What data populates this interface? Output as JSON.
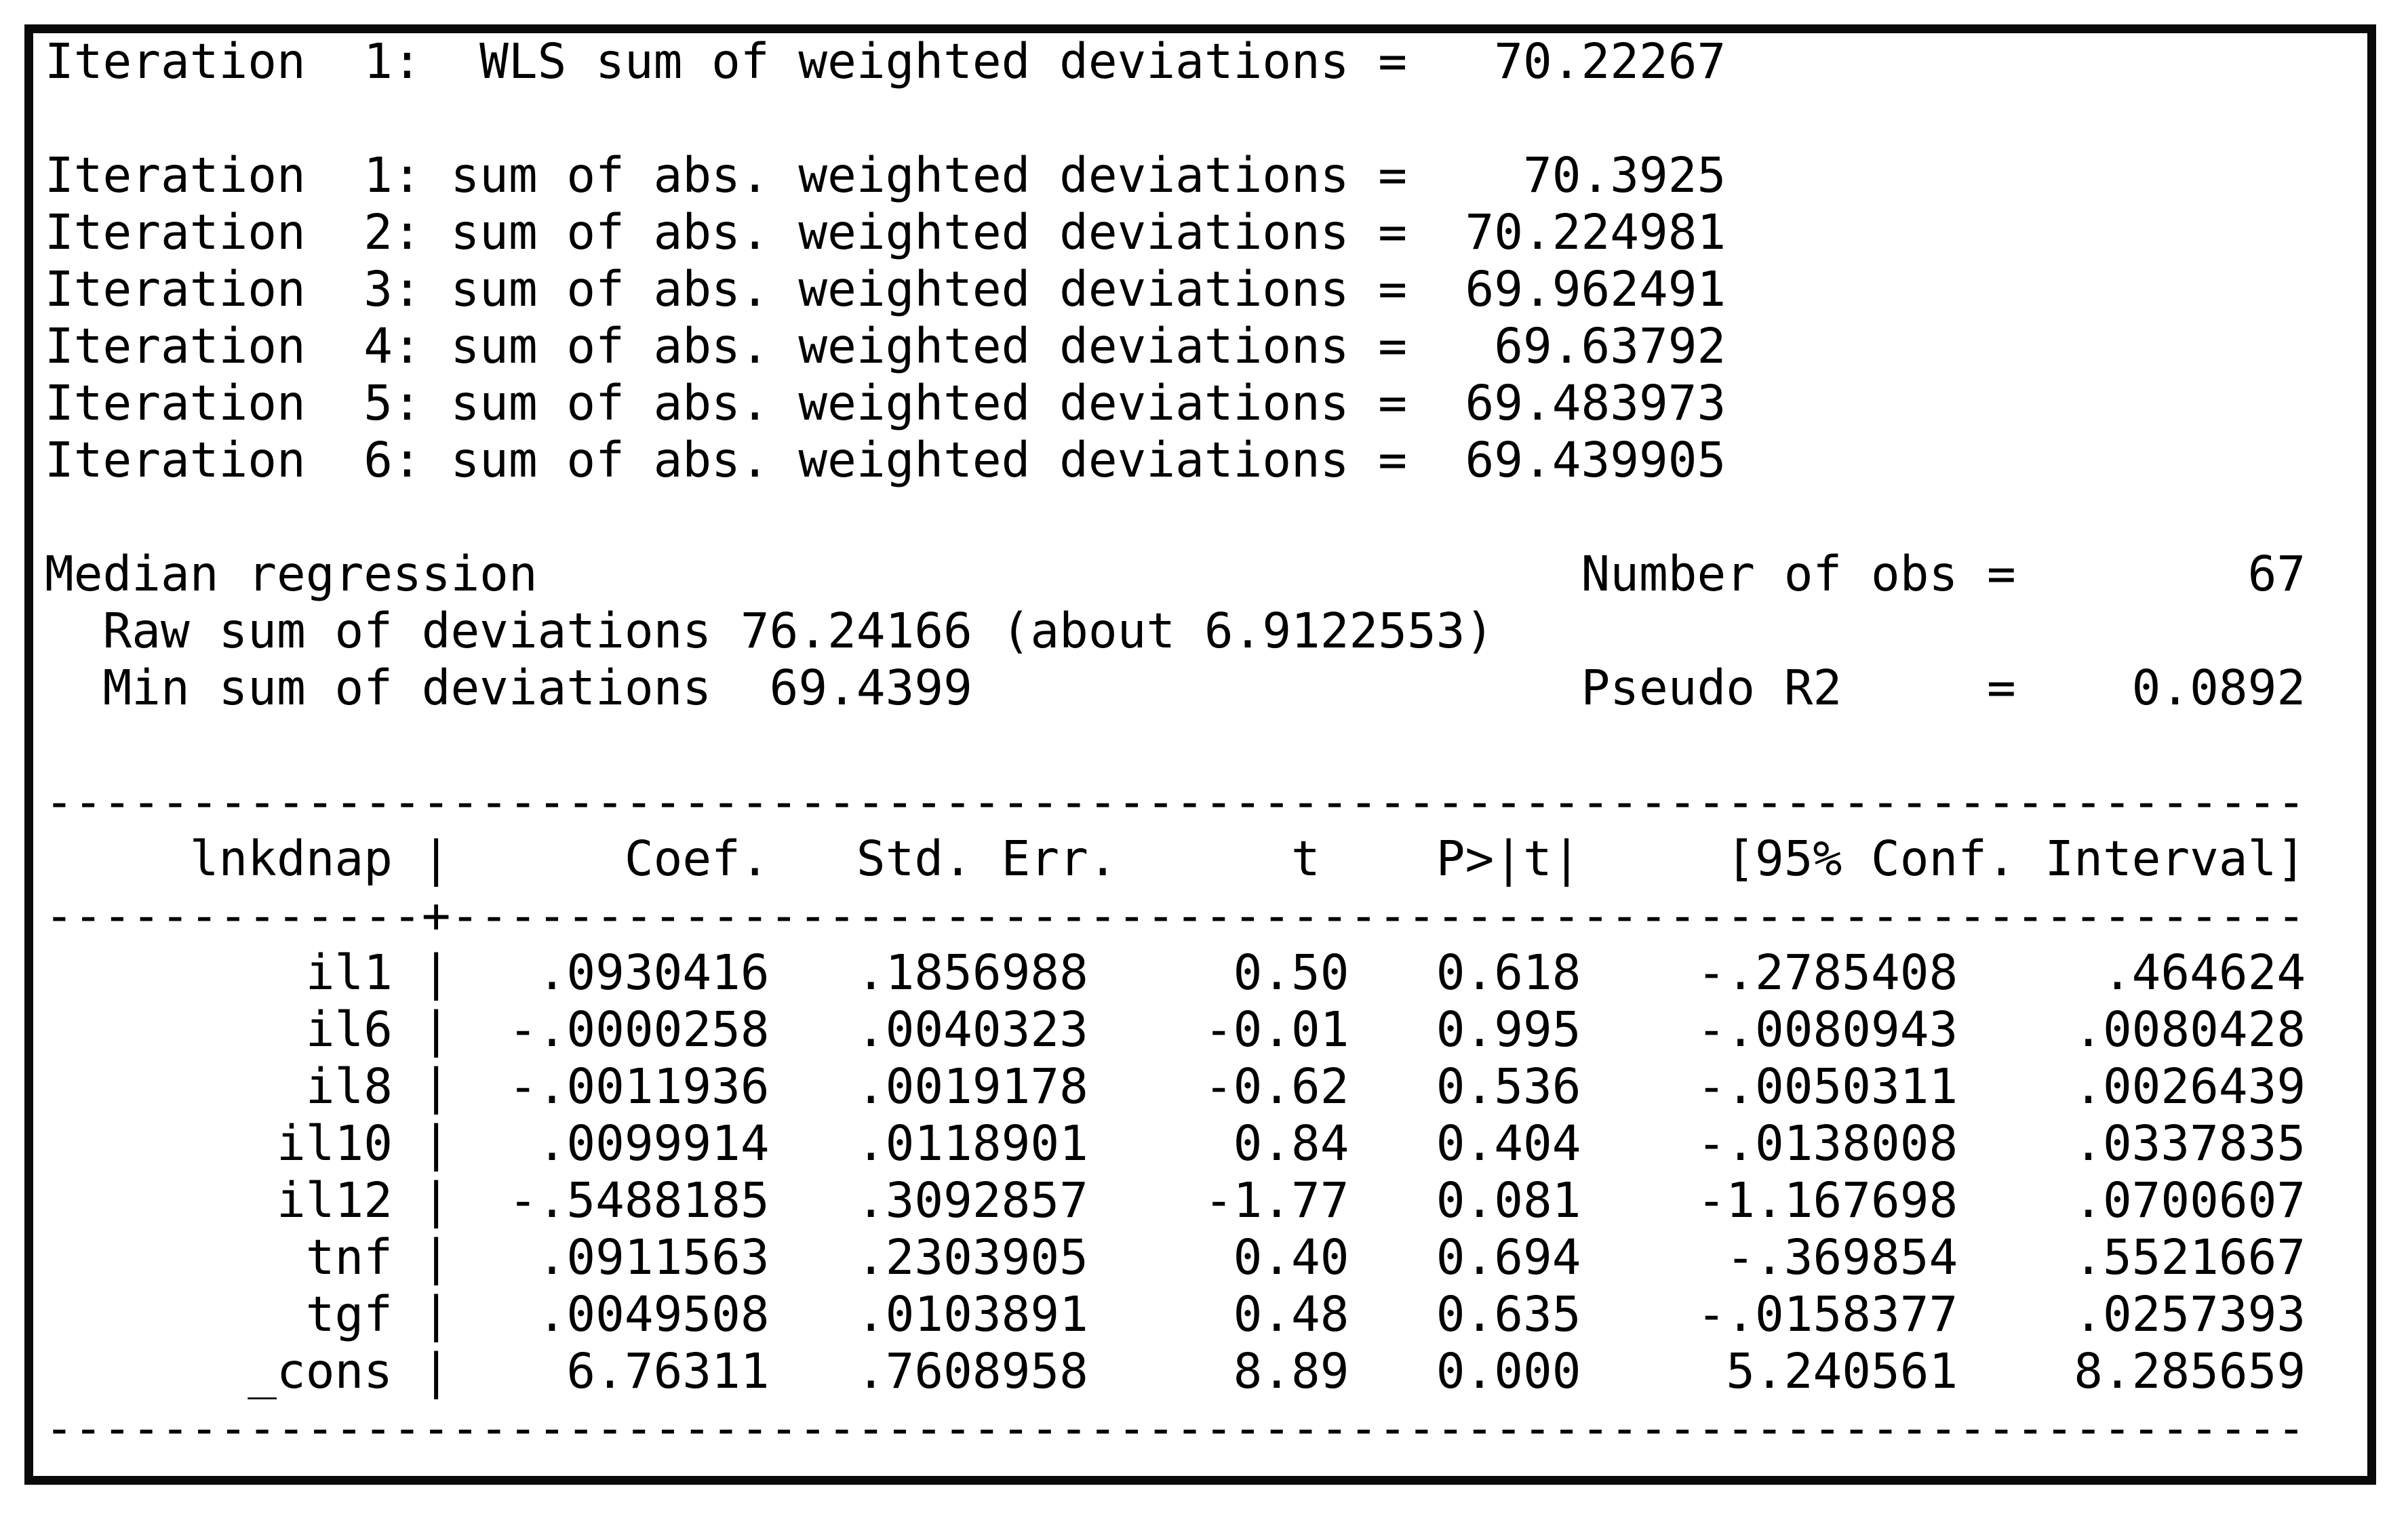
{
  "window": {
    "background_color": "#ffffff",
    "border_color": "#0a0a0a",
    "text_color": "#000000"
  },
  "iteration_log": {
    "wls_label": "WLS sum of weighted deviations",
    "wls_iterations": [
      {
        "iteration": 1,
        "value": "70.22267"
      }
    ],
    "abs_label": "sum of abs. weighted deviations",
    "abs_iterations": [
      {
        "iteration": 1,
        "value": "70.3925"
      },
      {
        "iteration": 2,
        "value": "70.224981"
      },
      {
        "iteration": 3,
        "value": "69.962491"
      },
      {
        "iteration": 4,
        "value": "69.63792"
      },
      {
        "iteration": 5,
        "value": "69.483973"
      },
      {
        "iteration": 6,
        "value": "69.439905"
      }
    ]
  },
  "summary": {
    "title": "Median regression",
    "raw_sum_label": "Raw sum of deviations",
    "raw_sum_value": "76.24166",
    "raw_sum_about": "6.9122553",
    "min_sum_label": "Min sum of deviations",
    "min_sum_value": "69.4399",
    "number_of_obs_label": "Number of obs",
    "number_of_obs": "67",
    "pseudo_r2_label": "Pseudo R2",
    "pseudo_r2": "0.0892"
  },
  "coefficient_table": {
    "depvar": "lnkdnap",
    "columns": [
      "Coef.",
      "Std. Err.",
      "t",
      "P>|t|",
      "[95% Conf. Interval]"
    ],
    "rows": [
      {
        "var": "il1",
        "coef": ".0930416",
        "std_err": ".1856988",
        "t": "0.50",
        "p": "0.618",
        "ci_low": "-.2785408",
        "ci_high": ".464624"
      },
      {
        "var": "il6",
        "coef": "-.0000258",
        "std_err": ".0040323",
        "t": "-0.01",
        "p": "0.995",
        "ci_low": "-.0080943",
        "ci_high": ".0080428"
      },
      {
        "var": "il8",
        "coef": "-.0011936",
        "std_err": ".0019178",
        "t": "-0.62",
        "p": "0.536",
        "ci_low": "-.0050311",
        "ci_high": ".0026439"
      },
      {
        "var": "il10",
        "coef": ".0099914",
        "std_err": ".0118901",
        "t": "0.84",
        "p": "0.404",
        "ci_low": "-.0138008",
        "ci_high": ".0337835"
      },
      {
        "var": "il12",
        "coef": "-.5488185",
        "std_err": ".3092857",
        "t": "-1.77",
        "p": "0.081",
        "ci_low": "-1.167698",
        "ci_high": ".0700607"
      },
      {
        "var": "tnf",
        "coef": ".0911563",
        "std_err": ".2303905",
        "t": "0.40",
        "p": "0.694",
        "ci_low": "-.369854",
        "ci_high": ".5521667"
      },
      {
        "var": "tgf",
        "coef": ".0049508",
        "std_err": ".0103891",
        "t": "0.48",
        "p": "0.635",
        "ci_low": "-.0158377",
        "ci_high": ".0257393"
      },
      {
        "var": "_cons",
        "coef": "6.76311",
        "std_err": ".7608958",
        "t": "8.89",
        "p": "0.000",
        "ci_low": "5.240561",
        "ci_high": "8.285659"
      }
    ]
  }
}
